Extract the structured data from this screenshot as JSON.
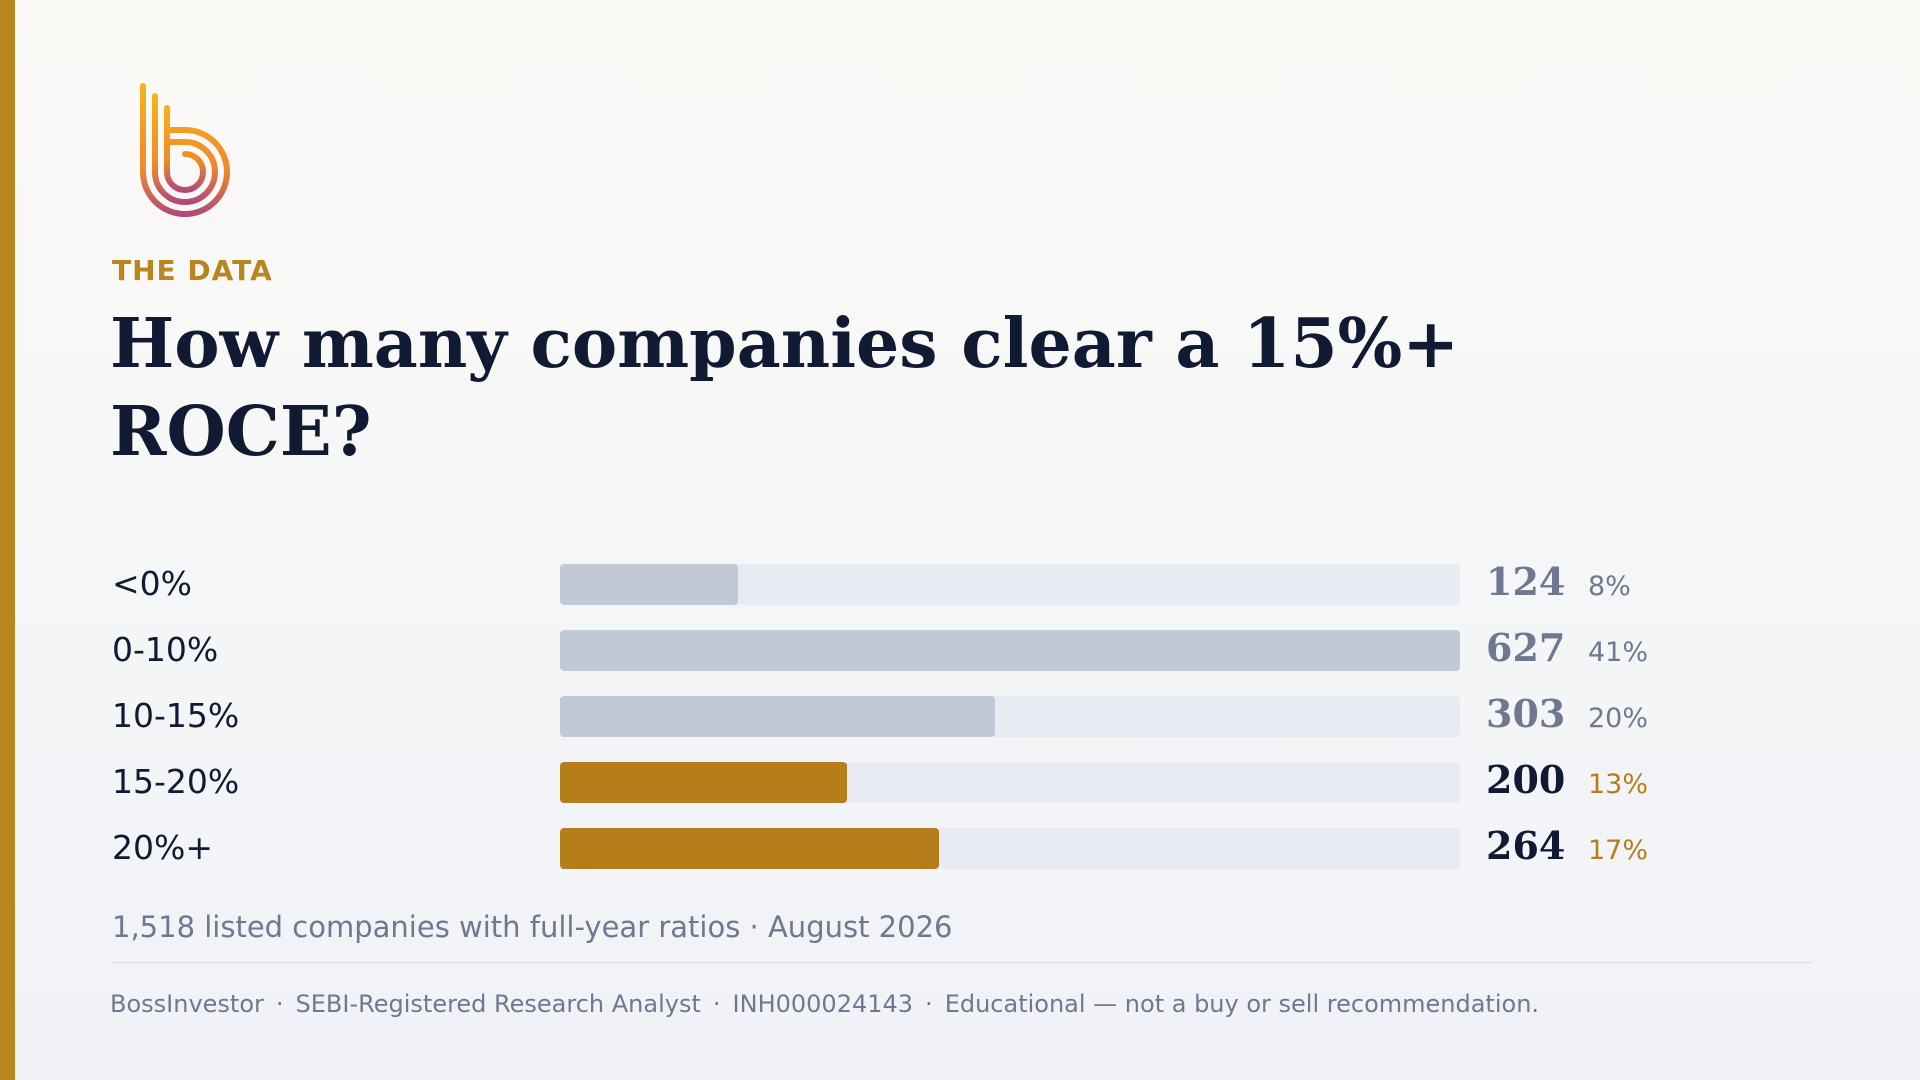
{
  "brand": {
    "eyebrow": "THE DATA"
  },
  "chart_data": {
    "type": "bar",
    "orientation": "horizontal",
    "title": "How many companies clear a 15%+ ROCE?",
    "categories": [
      "<0%",
      "0-10%",
      "10-15%",
      "15-20%",
      "20%+"
    ],
    "values": [
      124,
      627,
      303,
      200,
      264
    ],
    "percents": [
      "8%",
      "41%",
      "20%",
      "13%",
      "17%"
    ],
    "highlight": [
      false,
      false,
      false,
      true,
      true
    ],
    "xlim": [
      0,
      627
    ],
    "grid": false,
    "colors": {
      "base_bar": "#c1c9d6",
      "highlight_bar": "#b67d1b",
      "track": "#e8ebf2",
      "base_value": "#6f7890",
      "highlight_value": "#111a33",
      "highlight_pct": "#b67d1b"
    }
  },
  "note": "1,518 listed companies with full-year ratios · August 2026",
  "footer": {
    "items": [
      "BossInvestor",
      "SEBI-Registered Research Analyst",
      "INH000024143",
      "Educational — not a buy or sell recommendation."
    ],
    "separator": "·"
  }
}
